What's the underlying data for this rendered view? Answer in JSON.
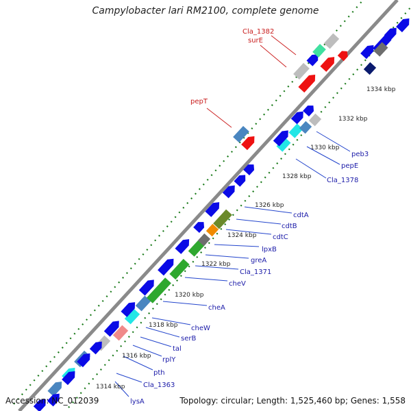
{
  "title": "Campylobacter lari RM2100, complete genome",
  "footer": {
    "accession": "Accession: NC_012039",
    "topology": "Topology: circular; Length: 1,525,460 bp; Genes: 1,558"
  },
  "colors": {
    "background": "#ffffff",
    "backbone": "#8a8a8a",
    "tick_dots": "#1a7a1a",
    "label_blue": "#1a1aa8",
    "label_red": "#c81a1a",
    "callout_line": "#2244cc",
    "callout_line_red": "#cc2222"
  },
  "kbp_ticks": [
    "1314 kbp",
    "1316 kbp",
    "1318 kbp",
    "1320 kbp",
    "1322 kbp",
    "1324 kbp",
    "1326 kbp",
    "1328 kbp",
    "1330 kbp",
    "1332 kbp",
    "1334 kbp"
  ],
  "gene_labels_blue": [
    "lysA",
    "Cla_1363",
    "pth",
    "rplY",
    "tal",
    "serB",
    "cheW",
    "cheA",
    "cheV",
    "Cla_1371",
    "greA",
    "lpxB",
    "cdtC",
    "cdtB",
    "cdtA",
    "Cla_1378",
    "pepE",
    "peb3"
  ],
  "gene_labels_red": [
    "pepT",
    "surE",
    "Cla_1382"
  ]
}
